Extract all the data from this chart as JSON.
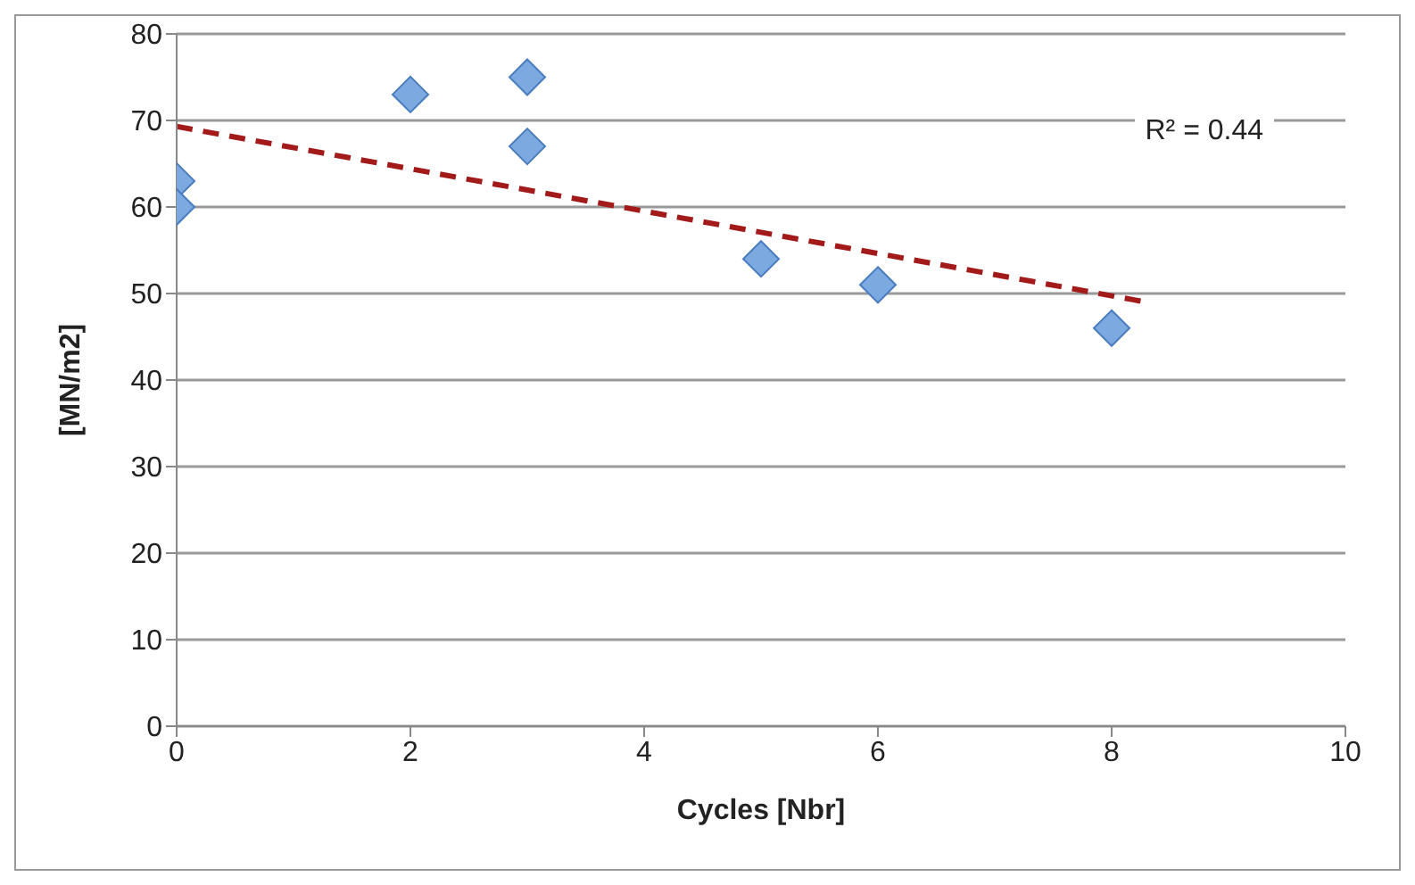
{
  "chart_data": {
    "type": "scatter",
    "xlabel": "Cycles [Nbr]",
    "ylabel": "[MN/m2]",
    "xlim": [
      0,
      10
    ],
    "xticks": [
      0,
      2,
      4,
      6,
      8,
      10
    ],
    "ylim": [
      0,
      80
    ],
    "yticks": [
      0,
      10,
      20,
      30,
      40,
      50,
      60,
      70,
      80
    ],
    "grid": "y",
    "marker": "diamond",
    "annotations": [
      "R² = 0.44"
    ],
    "series": [
      {
        "color": "#7ba9e0",
        "x": [
          0,
          0,
          2,
          3,
          3,
          5,
          6,
          8
        ],
        "values": [
          63,
          60,
          73,
          75,
          67,
          54,
          51,
          46
        ]
      },
      {
        "type": "line",
        "color": "#a31a1a",
        "line_style": "dashed",
        "marker": "none",
        "x": [
          0,
          8.3
        ],
        "values": [
          69.3,
          49
        ]
      }
    ]
  }
}
